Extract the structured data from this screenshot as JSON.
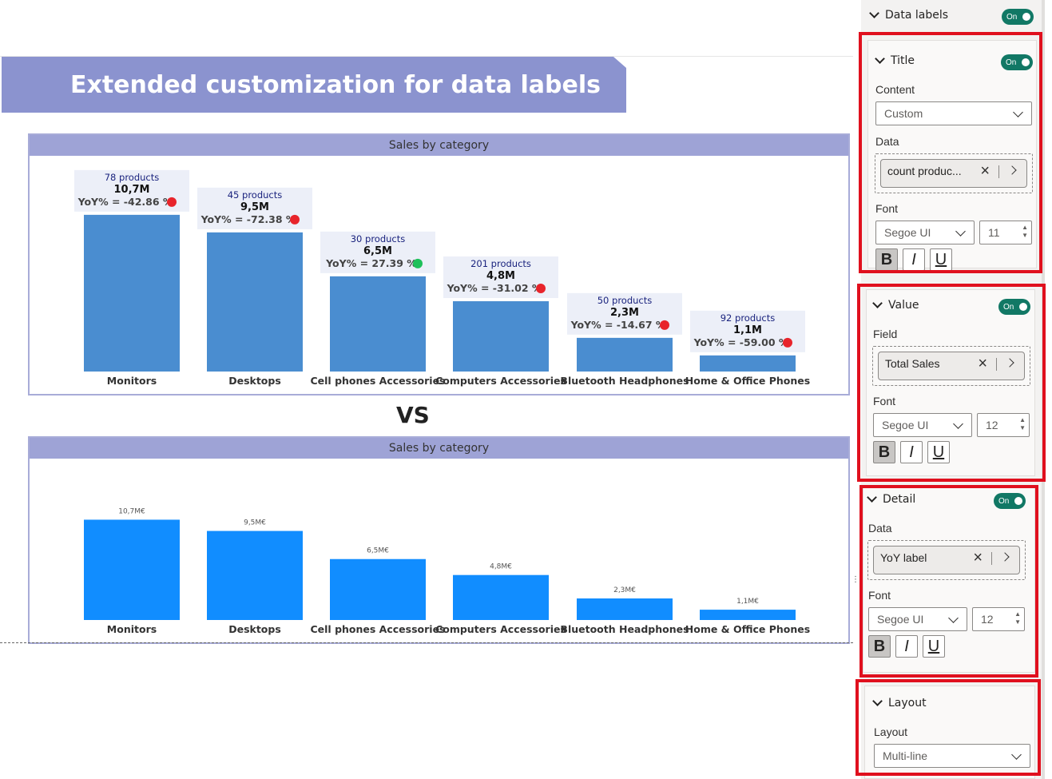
{
  "banner": {
    "title": "Extended customization for data labels"
  },
  "vs_label": "VS",
  "chart_data": [
    {
      "type": "bar",
      "title": "Sales by category",
      "categories": [
        "Monitors",
        "Desktops",
        "Cell phones Accessories",
        "Computers Accessories",
        "Bluetooth Headphones",
        "Home & Office Phones"
      ],
      "values": [
        10.7,
        9.5,
        6.5,
        4.8,
        2.3,
        1.1
      ],
      "value_labels": [
        "10,7M",
        "9,5M",
        "6,5M",
        "4,8M",
        "2,3M",
        "1,1M"
      ],
      "title_labels": [
        "78 products",
        "45 products",
        "30 products",
        "201 products",
        "50 products",
        "92 products"
      ],
      "detail_labels": [
        "YoY% = -42.86 %",
        "YoY% = -72.38 %",
        "YoY% = 27.39 %",
        "YoY% = -31.02 %",
        "YoY% = -14.67 %",
        "YoY% = -59.00 %"
      ],
      "yoy_status": [
        "down",
        "down",
        "up",
        "down",
        "down",
        "down"
      ],
      "colors": {
        "bar": "#4a8dd0",
        "up": "#1ec05a",
        "down": "#e8242b",
        "header": "#9ea3d6"
      },
      "ylim": [
        0,
        12
      ]
    },
    {
      "type": "bar",
      "title": "Sales by category",
      "categories": [
        "Monitors",
        "Desktops",
        "Cell phones Accessories",
        "Computers Accessories",
        "Bluetooth Headphones",
        "Home & Office Phones"
      ],
      "values": [
        10.7,
        9.5,
        6.5,
        4.8,
        2.3,
        1.1
      ],
      "value_labels": [
        "10,7M€",
        "9,5M€",
        "6,5M€",
        "4,8M€",
        "2,3M€",
        "1,1M€"
      ],
      "colors": {
        "bar": "#118dff",
        "header": "#9ea3d6"
      },
      "ylim": [
        0,
        12
      ]
    }
  ],
  "panel": {
    "data_labels": {
      "label": "Data labels",
      "toggle": "On"
    },
    "title": {
      "label": "Title",
      "toggle": "On",
      "content_label": "Content",
      "content_value": "Custom",
      "data_label": "Data",
      "data_value": "count produc...",
      "font_label": "Font",
      "font_family": "Segoe UI",
      "font_size": "11",
      "bold": "B",
      "italic": "I",
      "underline": "U"
    },
    "value": {
      "label": "Value",
      "toggle": "On",
      "field_label": "Field",
      "field_value": "Total Sales",
      "font_label": "Font",
      "font_family": "Segoe UI",
      "font_size": "12",
      "bold": "B",
      "italic": "I",
      "underline": "U"
    },
    "detail": {
      "label": "Detail",
      "toggle": "On",
      "data_label": "Data",
      "data_value": "YoY label",
      "font_label": "Font",
      "font_family": "Segoe UI",
      "font_size": "12",
      "bold": "B",
      "italic": "I",
      "underline": "U"
    },
    "layout": {
      "label": "Layout",
      "layout_label": "Layout",
      "layout_value": "Multi-line"
    },
    "colors": {
      "toggle": "#117865",
      "highlight": "#e0101e"
    }
  }
}
